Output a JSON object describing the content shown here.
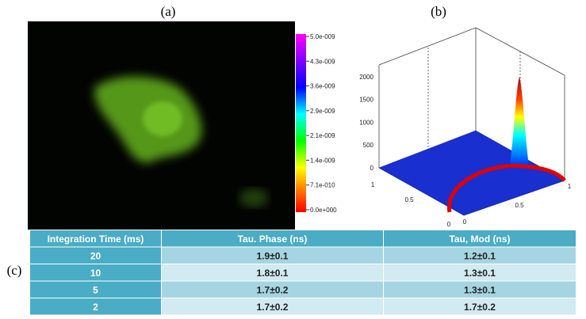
{
  "panels": {
    "a": "(a)",
    "b": "(b)",
    "c": "(c)"
  },
  "colorbar": {
    "ticks": [
      "5.0e-009",
      "4.3e-009",
      "3.6e-009",
      "2.9e-009",
      "2.1e-009",
      "1.4e-009",
      "7.1e-010",
      "0.0e+000"
    ]
  },
  "surface_plot": {
    "z_ticks": [
      "2000",
      "1500",
      "1000",
      "500",
      "0"
    ],
    "left_ticks": [
      "1",
      "0.5",
      "0"
    ],
    "right_ticks": [
      "0",
      "0.5",
      "1"
    ]
  },
  "table": {
    "header": [
      "Integration  Time (ms)",
      "Tau. Phase (ns)",
      "Tau, Mod (ns)"
    ],
    "rows": [
      [
        "20",
        "1.9±0.1",
        "1.2±0.1"
      ],
      [
        "10",
        "1.8±0.1",
        "1.3±0.1"
      ],
      [
        "5",
        "1.7±0.2",
        "1.3±0.1"
      ],
      [
        "2",
        "1.7±0.2",
        "1.7±0.2"
      ]
    ]
  }
}
